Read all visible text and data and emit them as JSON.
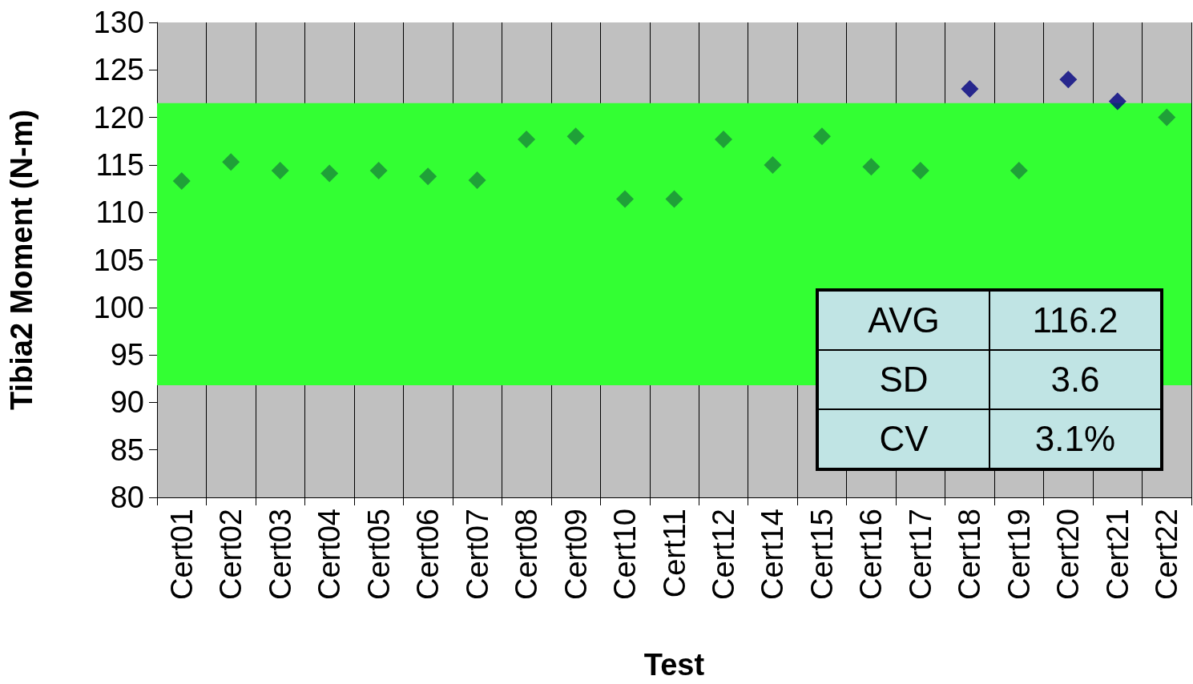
{
  "chart_data": {
    "type": "scatter",
    "xlabel": "Test",
    "ylabel": "Tibia2 Moment (N-m)",
    "categories": [
      "Cert01",
      "Cert02",
      "Cert03",
      "Cert04",
      "Cert05",
      "Cert06",
      "Cert07",
      "Cert08",
      "Cert09",
      "Cert10",
      "Cert11",
      "Cert12",
      "Cert14",
      "Cert15",
      "Cert16",
      "Cert17",
      "Cert18",
      "Cert19",
      "Cert20",
      "Cert21",
      "Cert22"
    ],
    "series": [
      {
        "values": [
          113.3,
          115.3,
          114.4,
          114.1,
          114.4,
          113.8,
          113.4,
          117.7,
          118.0,
          111.4,
          111.4,
          117.7,
          115.0,
          118.0,
          114.8,
          114.4,
          123.0,
          114.4,
          124.0,
          121.7,
          120.0
        ],
        "colors": [
          "#1a8a3a",
          "#1a8a3a",
          "#1a8a3a",
          "#1a8a3a",
          "#1a8a3a",
          "#1a8a3a",
          "#1a8a3a",
          "#1a8a3a",
          "#1a8a3a",
          "#1a8a3a",
          "#1a8a3a",
          "#1a8a3a",
          "#1a8a3a",
          "#1a8a3a",
          "#1a8a3a",
          "#1a8a3a",
          "#000080",
          "#1a8a3a",
          "#000080",
          "#000080",
          "#1a8a3a"
        ]
      }
    ],
    "ylim": [
      80,
      130
    ],
    "yticks": [
      80,
      85,
      90,
      95,
      100,
      105,
      110,
      115,
      120,
      125,
      130
    ],
    "bands": [
      {
        "axis": "y",
        "from": 91.8,
        "to": 121.5,
        "color": "#33ff33"
      }
    ],
    "annotations": [
      "AVG",
      "116.2",
      "SD",
      "3.6",
      "CV",
      "3.1%"
    ],
    "grid": "x",
    "marker": "diamond"
  }
}
